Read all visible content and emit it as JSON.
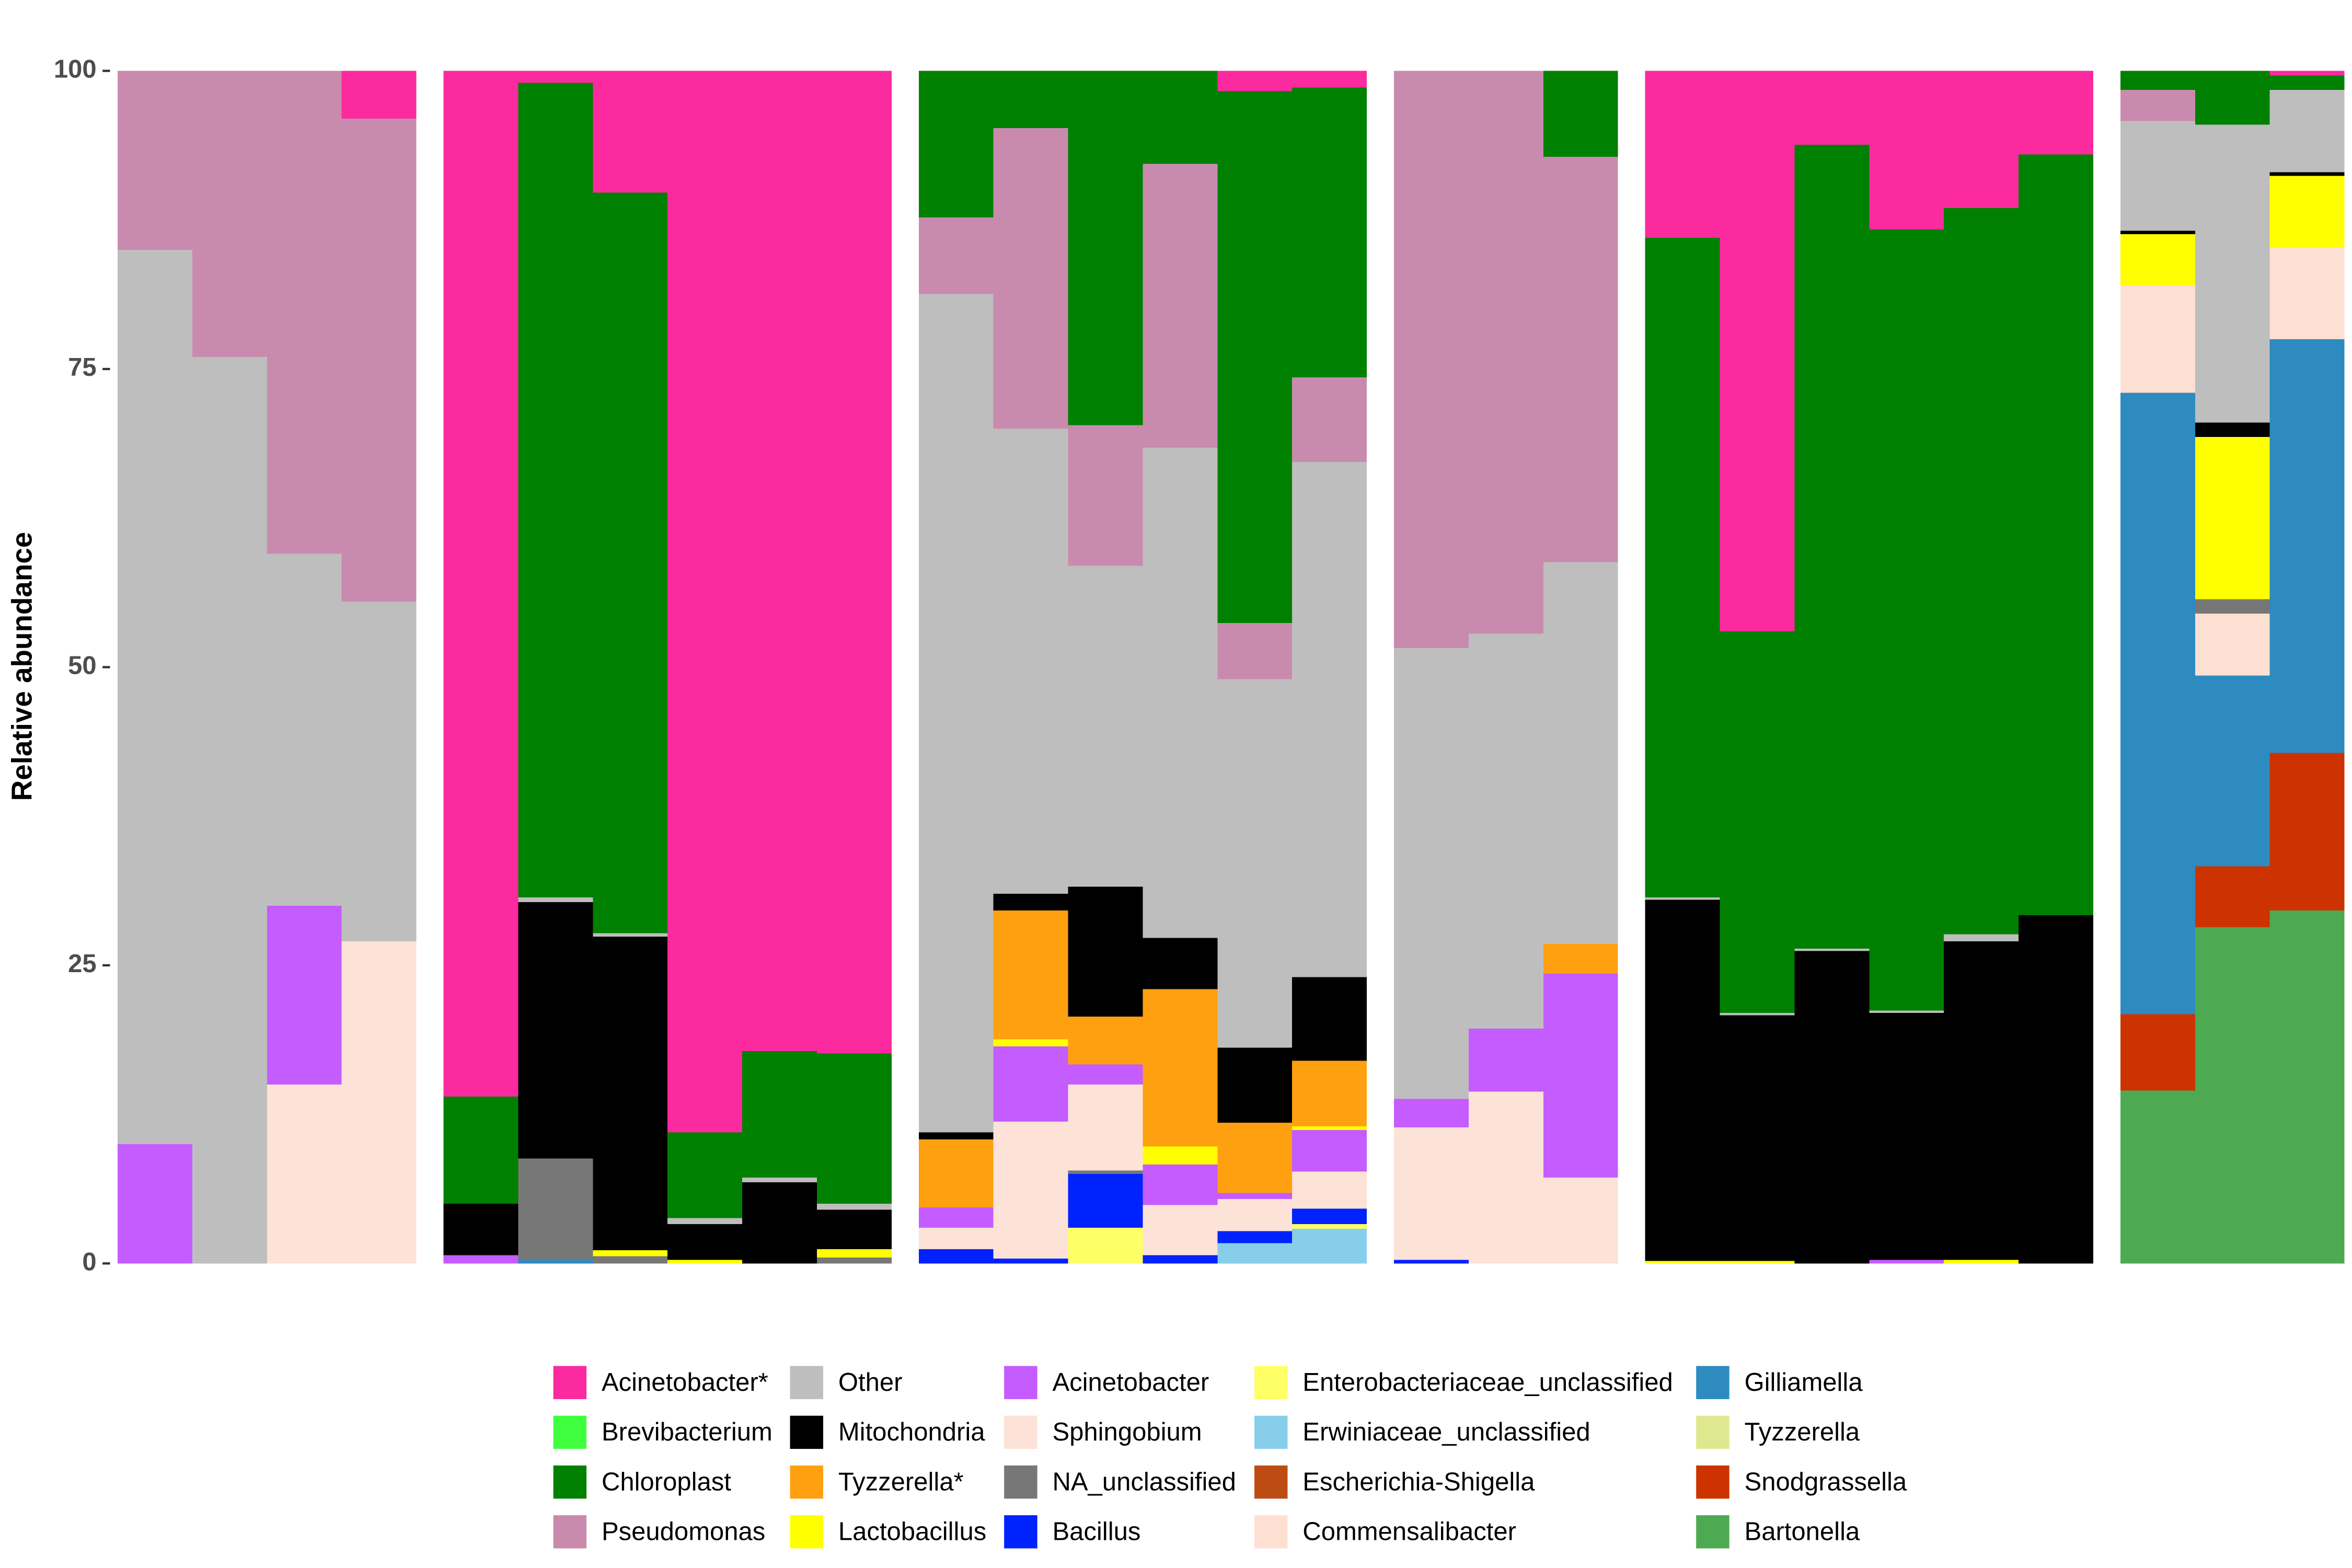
{
  "chart_data": {
    "type": "bar",
    "stacked": true,
    "ylabel": "Relative abundance",
    "ylim": [
      0,
      100
    ],
    "yticks": [
      0,
      25,
      50,
      75,
      100
    ],
    "legend": "bottom",
    "categories": [
      [
        null,
        null,
        null,
        null
      ],
      [
        null,
        null,
        null,
        null,
        null,
        null
      ],
      [
        null,
        null,
        null,
        null,
        null,
        null
      ],
      [
        null,
        null,
        null
      ],
      [
        null,
        null,
        null,
        null,
        null,
        null
      ],
      [
        null,
        null,
        null
      ]
    ],
    "series": [
      {
        "name": "Acinetobacter*",
        "color": "#fb2a9e",
        "values": [
          [
            0,
            0,
            0,
            4
          ],
          [
            86,
            1,
            10.2,
            89,
            82.2,
            82.4
          ],
          [
            0,
            0,
            0,
            0,
            1.7,
            1.4
          ],
          [
            0,
            0,
            0
          ],
          [
            14,
            47,
            6.2,
            13.3,
            11.5,
            7
          ],
          [
            0,
            0,
            0.4
          ]
        ]
      },
      {
        "name": "Brevibacterium",
        "color": "#3fff3f",
        "values": [
          [
            0,
            0,
            0,
            0
          ],
          [
            0,
            0,
            0,
            0,
            0,
            0
          ],
          [
            0,
            0,
            0,
            0,
            0,
            0
          ],
          [
            0,
            0,
            0
          ],
          [
            0,
            0,
            0,
            0,
            0,
            0
          ],
          [
            0,
            0,
            0
          ]
        ]
      },
      {
        "name": "Chloroplast",
        "color": "#008000",
        "values": [
          [
            0,
            0,
            0,
            0
          ],
          [
            9,
            68.3,
            62.1,
            7.2,
            10.6,
            12.6
          ],
          [
            12.3,
            4.8,
            29.7,
            7.8,
            44.6,
            24.3
          ],
          [
            0,
            0,
            7.2
          ],
          [
            55.3,
            32,
            67.4,
            65.5,
            60.9,
            63.8
          ],
          [
            1.6,
            4.5,
            1.2
          ]
        ]
      },
      {
        "name": "Pseudomonas",
        "color": "#c98bad",
        "values": [
          [
            15,
            24,
            40.5,
            40.5
          ],
          [
            0,
            0,
            0,
            0,
            0,
            0
          ],
          [
            6.4,
            25.2,
            11.8,
            23.8,
            4.7,
            7.1
          ],
          [
            48.4,
            47.2,
            34
          ],
          [
            0,
            0,
            0,
            0,
            0,
            0
          ],
          [
            2.6,
            0,
            0
          ]
        ]
      },
      {
        "name": "Other",
        "color": "#bebebe",
        "values": [
          [
            75,
            76,
            29.5,
            28.5
          ],
          [
            0,
            0.4,
            0.3,
            0.5,
            0.4,
            0.5
          ],
          [
            70.3,
            39,
            26.9,
            41.1,
            30.9,
            43.2
          ],
          [
            37.8,
            33.1,
            32
          ],
          [
            0.2,
            0.2,
            0.2,
            0.2,
            0.6,
            0
          ],
          [
            9.2,
            25,
            6.9
          ]
        ]
      },
      {
        "name": "Mitochondria",
        "color": "#000000",
        "values": [
          [
            0,
            0,
            0,
            0
          ],
          [
            4.3,
            21.5,
            26.3,
            3,
            6.8,
            3.3
          ],
          [
            0.6,
            1.4,
            10.9,
            4.3,
            6.3,
            7
          ],
          [
            0,
            0,
            0
          ],
          [
            30.3,
            20.6,
            26.2,
            20.7,
            26.7,
            29.2
          ],
          [
            0.3,
            1.2,
            0.3
          ]
        ]
      },
      {
        "name": "Tyzzerella*",
        "color": "#ffa010",
        "values": [
          [
            0,
            0,
            0,
            0
          ],
          [
            0,
            0,
            0,
            0,
            0,
            0
          ],
          [
            5.7,
            10.8,
            4,
            13.2,
            5.9,
            5.5
          ],
          [
            0,
            0,
            2.5
          ],
          [
            0,
            0,
            0,
            0,
            0,
            0
          ],
          [
            0,
            0,
            0
          ]
        ]
      },
      {
        "name": "Lactobacillus",
        "color": "#ffff00",
        "values": [
          [
            0,
            0,
            0,
            0
          ],
          [
            0,
            0,
            0.5,
            0.3,
            0,
            0.7
          ],
          [
            0,
            0.6,
            0,
            1.5,
            0,
            0.3
          ],
          [
            0,
            0,
            0
          ],
          [
            0.2,
            0.2,
            0,
            0,
            0.3,
            0
          ],
          [
            4.3,
            13.6,
            6
          ]
        ]
      },
      {
        "name": "Acinetobacter",
        "color": "#c55cff",
        "values": [
          [
            10,
            0,
            15,
            0
          ],
          [
            0.7,
            0,
            0,
            0,
            0,
            0
          ],
          [
            1.7,
            6.3,
            1.7,
            3.4,
            0.5,
            3.5
          ],
          [
            2.4,
            5.3,
            17.1
          ],
          [
            0,
            0,
            0,
            0.3,
            0,
            0
          ],
          [
            0,
            0,
            0
          ]
        ]
      },
      {
        "name": "Sphingobium",
        "color": "#fce2d7",
        "values": [
          [
            0,
            0,
            15,
            27
          ],
          [
            0,
            0,
            0,
            0,
            0,
            0
          ],
          [
            1.8,
            11.5,
            7.2,
            4.2,
            2.7,
            3.1
          ],
          [
            11.1,
            14.4,
            7.2
          ],
          [
            0,
            0,
            0,
            0,
            0,
            0
          ],
          [
            0,
            0,
            0
          ]
        ]
      },
      {
        "name": "NA_unclassified",
        "color": "#777777",
        "values": [
          [
            0,
            0,
            0,
            0
          ],
          [
            0,
            8.5,
            0.6,
            0,
            0,
            0.5
          ],
          [
            0,
            0,
            0.3,
            0,
            0,
            0
          ],
          [
            0,
            0,
            0
          ],
          [
            0,
            0,
            0,
            0,
            0,
            0
          ],
          [
            0,
            1.2,
            0
          ]
        ]
      },
      {
        "name": "Bacillus",
        "color": "#0022ff",
        "values": [
          [
            0,
            0,
            0,
            0
          ],
          [
            0,
            0,
            0,
            0,
            0,
            0
          ],
          [
            1.2,
            0.4,
            4.5,
            0.7,
            1,
            1.3
          ],
          [
            0.3,
            0,
            0
          ],
          [
            0,
            0,
            0,
            0,
            0,
            0
          ],
          [
            0,
            0,
            0
          ]
        ]
      },
      {
        "name": "Enterobacteriaceae_unclassified",
        "color": "#ffff66",
        "values": [
          [
            0,
            0,
            0,
            0
          ],
          [
            0,
            0,
            0,
            0,
            0,
            0
          ],
          [
            0,
            0,
            3,
            0,
            0,
            0.4
          ],
          [
            0,
            0,
            0
          ],
          [
            0,
            0,
            0,
            0,
            0,
            0
          ],
          [
            0,
            0,
            0
          ]
        ]
      },
      {
        "name": "Erwiniaceae_unclassified",
        "color": "#87ceeb",
        "values": [
          [
            0,
            0,
            0,
            0
          ],
          [
            0,
            0,
            0,
            0,
            0,
            0
          ],
          [
            0,
            0,
            0,
            0,
            1.7,
            2.9
          ],
          [
            0,
            0,
            0
          ],
          [
            0,
            0,
            0,
            0,
            0,
            0
          ],
          [
            0,
            0,
            0
          ]
        ]
      },
      {
        "name": "Escherichia-Shigella",
        "color": "#bd4c14",
        "values": [
          [
            0,
            0,
            0,
            0
          ],
          [
            0,
            0,
            0,
            0,
            0,
            0
          ],
          [
            0,
            0,
            0,
            0,
            0,
            0
          ],
          [
            0,
            0,
            0
          ],
          [
            0,
            0,
            0,
            0,
            0,
            0
          ],
          [
            0,
            0,
            0
          ]
        ]
      },
      {
        "name": "Commensalibacter",
        "color": "#fee0d2",
        "values": [
          [
            0,
            0,
            0,
            0
          ],
          [
            0,
            0,
            0,
            0,
            0,
            0
          ],
          [
            0,
            0,
            0,
            0,
            0,
            0
          ],
          [
            0,
            0,
            0
          ],
          [
            0,
            0,
            0,
            0,
            0,
            0
          ],
          [
            9,
            5.2,
            7.7
          ]
        ]
      },
      {
        "name": "Gilliamella",
        "color": "#2e8bc0",
        "values": [
          [
            0,
            0,
            0,
            0
          ],
          [
            0,
            0.3,
            0,
            0,
            0,
            0
          ],
          [
            0,
            0,
            0,
            0,
            0,
            0
          ],
          [
            0,
            0,
            0
          ],
          [
            0,
            0,
            0,
            0,
            0,
            0
          ],
          [
            52.1,
            16,
            34.7
          ]
        ]
      },
      {
        "name": "Tyzzerella",
        "color": "#dde88f",
        "values": [
          [
            0,
            0,
            0,
            0
          ],
          [
            0,
            0,
            0,
            0,
            0,
            0
          ],
          [
            0,
            0,
            0,
            0,
            0,
            0
          ],
          [
            0,
            0,
            0
          ],
          [
            0,
            0,
            0,
            0,
            0,
            0
          ],
          [
            0,
            0,
            0
          ]
        ]
      },
      {
        "name": "Snodgrassella",
        "color": "#cc3300",
        "values": [
          [
            0,
            0,
            0,
            0
          ],
          [
            0,
            0,
            0,
            0,
            0,
            0
          ],
          [
            0,
            0,
            0,
            0,
            0,
            0
          ],
          [
            0,
            0,
            0
          ],
          [
            0,
            0,
            0,
            0,
            0,
            0
          ],
          [
            6.4,
            5.1,
            13.2
          ]
        ]
      },
      {
        "name": "Bartonella",
        "color": "#4daa52",
        "values": [
          [
            0,
            0,
            0,
            0
          ],
          [
            0,
            0,
            0,
            0,
            0,
            0
          ],
          [
            0,
            0,
            0,
            0,
            0,
            0
          ],
          [
            0,
            0,
            0
          ],
          [
            0,
            0,
            0,
            0,
            0,
            0
          ],
          [
            14.5,
            28.2,
            29.6
          ]
        ]
      }
    ]
  }
}
